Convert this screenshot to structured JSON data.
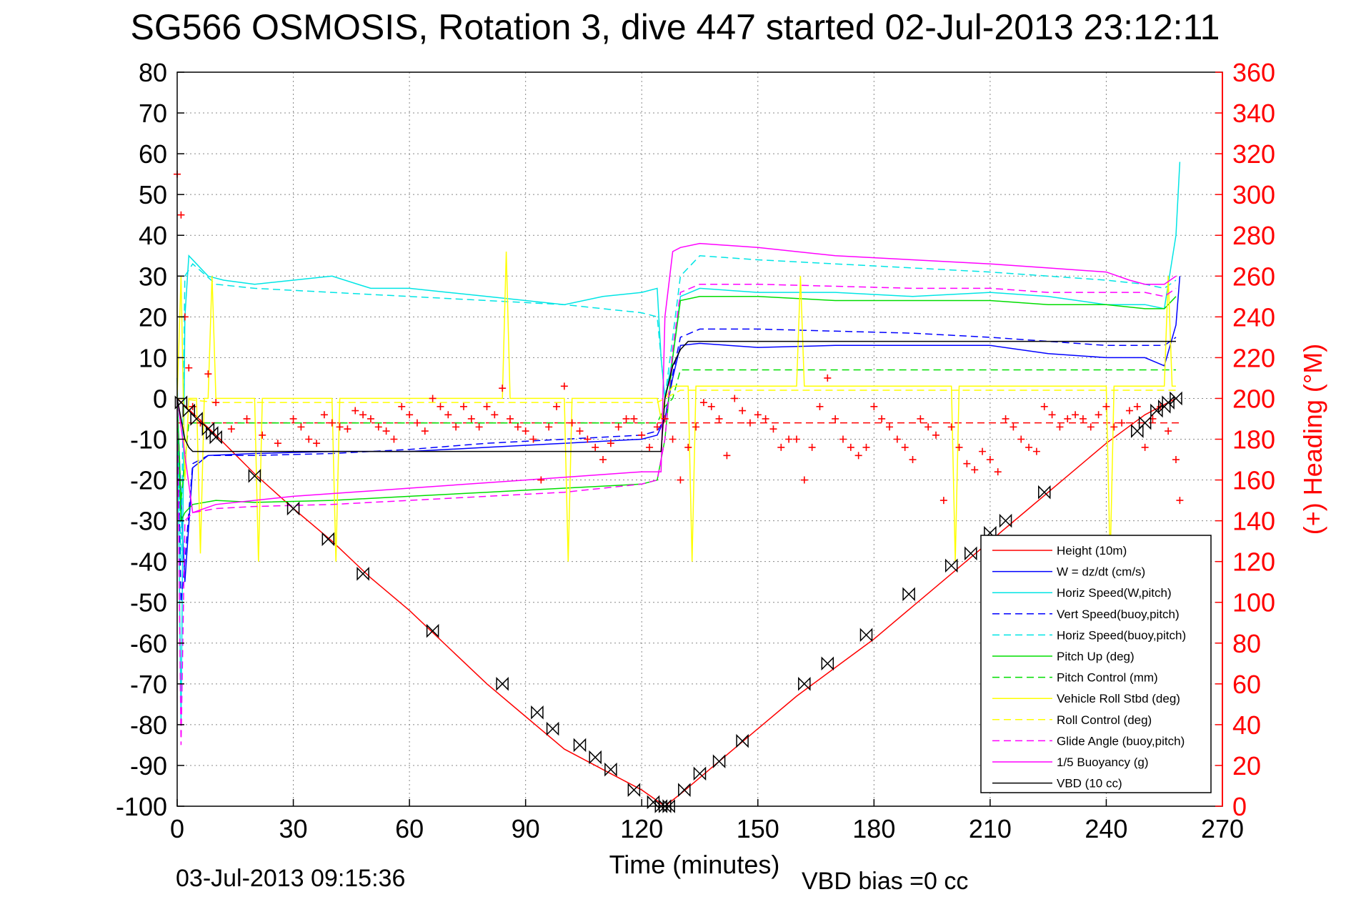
{
  "chart_data": {
    "type": "line",
    "title": "SG566 OSMOSIS, Rotation 3, dive 447 started 02-Jul-2013 23:12:11",
    "xlabel": "Time (minutes)",
    "ylabel": "",
    "y2label": "(+) Heading (°M)",
    "footer_date": "03-Jul-2013 09:15:36",
    "footer_bias": "VBD bias =0 cc",
    "xlim": [
      0,
      270
    ],
    "ylim": [
      -100,
      80
    ],
    "y2lim": [
      0,
      360
    ],
    "xticks": [
      "0",
      "30",
      "60",
      "90",
      "120",
      "150",
      "180",
      "210",
      "240",
      "270"
    ],
    "yticks": [
      "80",
      "70",
      "60",
      "50",
      "40",
      "30",
      "20",
      "10",
      "0",
      "-10",
      "-20",
      "-30",
      "-40",
      "-50",
      "-60",
      "-70",
      "-80",
      "-90",
      "-100"
    ],
    "y2ticks": [
      "360",
      "340",
      "320",
      "300",
      "280",
      "260",
      "240",
      "220",
      "200",
      "180",
      "160",
      "140",
      "120",
      "100",
      "80",
      "60",
      "40",
      "20",
      "0"
    ],
    "grid": true,
    "legend_position": "bottom-right",
    "series": [
      {
        "name": "Height (10m)",
        "color": "#ff0000",
        "style": "solid",
        "x": [
          0,
          10,
          20,
          30,
          40,
          50,
          60,
          70,
          80,
          90,
          100,
          110,
          120,
          126,
          130,
          140,
          150,
          160,
          170,
          180,
          190,
          200,
          210,
          220,
          230,
          240,
          250,
          255,
          258
        ],
        "y": [
          0,
          -9,
          -18.5,
          -27,
          -35,
          -44,
          -52,
          -61,
          -70,
          -78,
          -86,
          -91,
          -96,
          -100,
          -97,
          -89,
          -81,
          -73,
          -66,
          -59,
          -51,
          -43,
          -35,
          -27,
          -19,
          -11,
          -4,
          -1.5,
          0
        ]
      },
      {
        "name": "W = dz/dt (cm/s)",
        "color": "#0000ff",
        "style": "solid",
        "x": [
          0,
          1,
          2,
          4,
          8,
          20,
          40,
          60,
          80,
          100,
          120,
          124,
          126,
          128,
          130,
          135,
          150,
          170,
          190,
          210,
          225,
          240,
          250,
          255,
          258,
          259
        ],
        "y": [
          0,
          -25,
          -45,
          -17,
          -14,
          -13.5,
          -13,
          -13,
          -12,
          -11,
          -10,
          -9,
          -5,
          5,
          13,
          13.5,
          12.5,
          13,
          13,
          13,
          11,
          10,
          10,
          8,
          18,
          30
        ]
      },
      {
        "name": "Horiz Speed(W,pitch)",
        "color": "#00e5e5",
        "style": "solid",
        "x": [
          0,
          1,
          2,
          3,
          5,
          8,
          12,
          20,
          30,
          40,
          50,
          60,
          70,
          80,
          90,
          100,
          110,
          120,
          124,
          125,
          126,
          128,
          130,
          135,
          150,
          170,
          190,
          210,
          225,
          240,
          250,
          255,
          258,
          259
        ],
        "y": [
          5,
          -80,
          20,
          35,
          33,
          30,
          29,
          28,
          29,
          30,
          27,
          27,
          26,
          25,
          24,
          23,
          25,
          26,
          27,
          10,
          0,
          10,
          25,
          27,
          26,
          26,
          25,
          26,
          25,
          23,
          23,
          22,
          40,
          58
        ]
      },
      {
        "name": "Vert Speed(buoy,pitch)",
        "color": "#0000ff",
        "style": "dashed",
        "x": [
          0,
          1,
          2,
          4,
          8,
          20,
          40,
          60,
          80,
          100,
          120,
          124,
          126,
          128,
          130,
          135,
          150,
          170,
          190,
          210,
          225,
          240,
          250,
          255,
          258
        ],
        "y": [
          0,
          -50,
          -40,
          -16,
          -14,
          -14,
          -13.5,
          -12.5,
          -11,
          -10,
          -9,
          -8,
          -5,
          6,
          15,
          17,
          17,
          16.5,
          16,
          15,
          14,
          13,
          13,
          13,
          15
        ]
      },
      {
        "name": "Horiz Speed(buoy,pitch)",
        "color": "#00e5e5",
        "style": "dashed",
        "x": [
          0,
          1,
          2,
          4,
          10,
          20,
          40,
          60,
          80,
          100,
          120,
          124,
          126,
          128,
          130,
          135,
          150,
          170,
          190,
          210,
          225,
          240,
          250,
          255,
          258
        ],
        "y": [
          5,
          -40,
          30,
          33,
          28,
          27,
          26,
          25,
          24,
          23,
          21,
          20,
          0,
          15,
          30,
          35,
          34,
          33,
          32,
          31,
          30,
          29,
          28,
          27,
          29
        ]
      },
      {
        "name": "Pitch Up (deg)",
        "color": "#00dd00",
        "style": "solid",
        "x": [
          0,
          1,
          2,
          4,
          10,
          20,
          40,
          60,
          80,
          100,
          120,
          124,
          126,
          128,
          130,
          135,
          150,
          170,
          190,
          210,
          225,
          240,
          250,
          255,
          258
        ],
        "y": [
          0,
          -30,
          -28,
          -26,
          -25,
          -25.5,
          -25,
          -24,
          -23,
          -22,
          -21,
          -20,
          -10,
          10,
          24,
          25,
          25,
          24,
          24,
          24,
          23,
          23,
          22,
          22,
          25
        ]
      },
      {
        "name": "Pitch Control (mm)",
        "color": "#00dd00",
        "style": "dashed",
        "x": [
          0,
          1,
          3,
          10,
          40,
          80,
          120,
          124,
          126,
          128,
          130,
          150,
          180,
          210,
          240,
          255,
          258
        ],
        "y": [
          0,
          -25,
          -6,
          -6,
          -6,
          -6,
          -6,
          -6,
          -2,
          0,
          7,
          7,
          7,
          7,
          7,
          7,
          7
        ]
      },
      {
        "name": "Vehicle Roll Stbd (deg)",
        "color": "#ffff00",
        "style": "solid",
        "x": [
          0,
          1,
          2,
          3,
          5,
          6,
          7,
          8,
          9,
          10,
          20,
          21,
          22,
          40,
          41,
          42,
          84,
          85,
          86,
          100,
          101,
          102,
          124,
          125,
          126,
          128,
          130,
          132,
          133,
          134,
          160,
          161,
          162,
          200,
          201,
          202,
          240,
          241,
          242,
          255,
          256,
          257,
          258
        ],
        "y": [
          0,
          30,
          -20,
          0,
          0,
          -38,
          0,
          0,
          30,
          0,
          0,
          -40,
          0,
          0,
          -40,
          0,
          0,
          36,
          0,
          0,
          -40,
          0,
          0,
          -5,
          0,
          3,
          3,
          3,
          -40,
          3,
          3,
          30,
          3,
          3,
          -40,
          3,
          3,
          -40,
          3,
          3,
          30,
          3,
          3
        ]
      },
      {
        "name": "Roll Control (deg)",
        "color": "#ffff00",
        "style": "dashed",
        "x": [
          0,
          10,
          30,
          40,
          60,
          80,
          100,
          120,
          124,
          126,
          128,
          130,
          150,
          170,
          190,
          210,
          230,
          250,
          255,
          258
        ],
        "y": [
          0,
          -1,
          -1,
          -1,
          -1,
          -1,
          -1,
          -1,
          -1,
          0,
          1,
          2,
          2,
          2,
          2,
          2,
          2,
          2,
          2,
          2
        ]
      },
      {
        "name": "Glide Angle (buoy,pitch)",
        "color": "#ff00ff",
        "style": "dashed",
        "x": [
          0,
          1,
          2,
          4,
          10,
          20,
          40,
          60,
          80,
          100,
          120,
          124,
          126,
          128,
          130,
          135,
          150,
          170,
          190,
          210,
          225,
          240,
          250,
          255,
          258
        ],
        "y": [
          0,
          -85,
          -30,
          -28,
          -27,
          -26.5,
          -26,
          -25,
          -24,
          -23,
          -21,
          -20,
          -10,
          12,
          26,
          28,
          28,
          27.5,
          27,
          27,
          26,
          26,
          26,
          25,
          27
        ]
      },
      {
        "name": "1/5 Buoyancy (g)",
        "color": "#ff00ff",
        "style": "solid",
        "x": [
          0,
          4,
          10,
          30,
          60,
          90,
          120,
          125,
          126,
          128,
          130,
          135,
          150,
          170,
          190,
          210,
          225,
          240,
          246,
          250,
          255,
          258
        ],
        "y": [
          0,
          -28,
          -26,
          -24,
          -22,
          -20,
          -18,
          -18,
          20,
          36,
          37,
          38,
          37,
          35,
          34,
          33,
          32,
          31,
          29,
          28,
          28,
          30
        ]
      },
      {
        "name": "VBD (10 cc)",
        "color": "#000000",
        "style": "solid",
        "x": [
          0,
          1,
          2,
          3,
          4,
          20,
          40,
          60,
          80,
          100,
          120,
          124,
          125,
          126,
          128,
          130,
          132,
          150,
          180,
          210,
          240,
          255,
          258
        ],
        "y": [
          0,
          -5,
          -10,
          -12,
          -13,
          -13,
          -13,
          -13,
          -13,
          -13,
          -13,
          -13,
          -13,
          0,
          8,
          12,
          14,
          14,
          14,
          14,
          14,
          14,
          14
        ]
      }
    ],
    "heading": {
      "name": "(+) Heading",
      "color": "#ff0000",
      "marker": "+",
      "mean_line": 188,
      "x": [
        0,
        1,
        2,
        3,
        4,
        6,
        8,
        10,
        14,
        18,
        22,
        26,
        30,
        32,
        34,
        36,
        38,
        40,
        42,
        44,
        46,
        48,
        50,
        52,
        54,
        56,
        58,
        60,
        62,
        64,
        66,
        68,
        70,
        72,
        74,
        76,
        78,
        80,
        82,
        84,
        86,
        88,
        90,
        92,
        94,
        96,
        98,
        100,
        102,
        104,
        106,
        108,
        110,
        112,
        114,
        116,
        118,
        120,
        122,
        124,
        126,
        128,
        130,
        132,
        134,
        136,
        138,
        140,
        142,
        144,
        146,
        148,
        150,
        152,
        154,
        156,
        158,
        160,
        162,
        164,
        166,
        168,
        170,
        172,
        174,
        176,
        178,
        180,
        182,
        184,
        186,
        188,
        190,
        192,
        194,
        196,
        198,
        200,
        202,
        204,
        206,
        208,
        210,
        212,
        214,
        216,
        218,
        220,
        222,
        224,
        226,
        228,
        230,
        232,
        234,
        236,
        238,
        240,
        242,
        244,
        246,
        248,
        250,
        252,
        254,
        256,
        258,
        259
      ],
      "y": [
        310,
        290,
        240,
        215,
        196,
        188,
        212,
        198,
        185,
        190,
        182,
        178,
        190,
        186,
        180,
        178,
        192,
        188,
        186,
        185,
        194,
        192,
        190,
        186,
        184,
        180,
        196,
        192,
        188,
        184,
        200,
        196,
        192,
        186,
        196,
        190,
        186,
        196,
        192,
        205,
        190,
        186,
        184,
        180,
        160,
        186,
        196,
        206,
        188,
        184,
        180,
        176,
        170,
        178,
        186,
        190,
        190,
        182,
        176,
        186,
        190,
        180,
        160,
        176,
        186,
        198,
        196,
        190,
        172,
        200,
        194,
        188,
        192,
        190,
        185,
        176,
        180,
        180,
        160,
        176,
        196,
        210,
        190,
        180,
        176,
        172,
        176,
        196,
        190,
        186,
        180,
        176,
        170,
        190,
        186,
        182,
        150,
        186,
        176,
        168,
        165,
        174,
        170,
        164,
        190,
        186,
        180,
        176,
        174,
        196,
        192,
        186,
        190,
        192,
        190,
        186,
        192,
        196,
        186,
        188,
        194,
        196,
        176,
        190,
        196,
        184,
        170,
        150
      ]
    },
    "vbd_markers": {
      "x": [
        1,
        3,
        5,
        8,
        9,
        10,
        20,
        30,
        39,
        48,
        66,
        84,
        93,
        97,
        104,
        108,
        112,
        118,
        123,
        125,
        126,
        127,
        131,
        135,
        140,
        146,
        162,
        168,
        178,
        189,
        200,
        205,
        210,
        214,
        224,
        248,
        250,
        253,
        255,
        256,
        258
      ],
      "y": [
        -1,
        -3,
        -5,
        -7.5,
        -8.5,
        -9.5,
        -19,
        -27,
        -34.5,
        -43,
        -57,
        -70,
        -77,
        -81,
        -85,
        -88,
        -91,
        -96,
        -99,
        -100,
        -100,
        -100,
        -96,
        -92,
        -89,
        -84,
        -70,
        -65,
        -58,
        -48,
        -41,
        -38,
        -33,
        -30,
        -23,
        -8,
        -6,
        -3,
        -2,
        -1,
        0
      ]
    }
  }
}
